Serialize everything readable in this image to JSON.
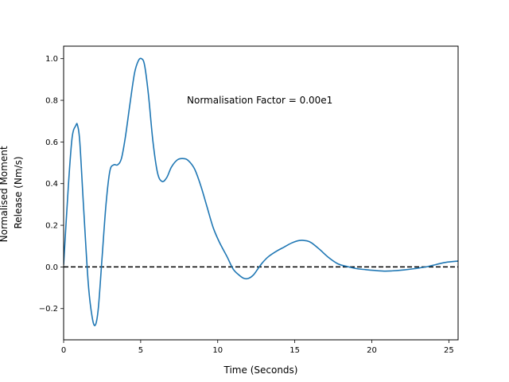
{
  "chart_data": {
    "type": "line",
    "title": "",
    "xlabel": "Time (Seconds)",
    "ylabel_lines": [
      "Normalised Moment",
      "Release (Nm/s)"
    ],
    "xlim": [
      0,
      25.6
    ],
    "ylim": [
      -0.35,
      1.06
    ],
    "x_ticks": [
      0,
      5,
      10,
      15,
      20,
      25
    ],
    "y_ticks": [
      -0.2,
      0.0,
      0.2,
      0.4,
      0.6,
      0.8,
      1.0
    ],
    "x_tick_labels": [
      "0",
      "5",
      "10",
      "15",
      "20",
      "25"
    ],
    "y_tick_labels": [
      "−0.2",
      "0.0",
      "0.2",
      "0.4",
      "0.6",
      "0.8",
      "1.0"
    ],
    "grid": false,
    "annotation": {
      "text": "Normalisation Factor = 0.00e1",
      "x": 8.0,
      "y": 0.8
    },
    "reference_line": {
      "y": 0.0,
      "style": "dashed",
      "color": "#000000"
    },
    "series": [
      {
        "color": "#1f77b4",
        "x": [
          0,
          0.3,
          0.55,
          0.8,
          0.9,
          1.05,
          1.3,
          1.6,
          1.85,
          2.05,
          2.25,
          2.5,
          2.75,
          3.0,
          3.25,
          3.5,
          3.75,
          4.0,
          4.3,
          4.6,
          4.85,
          5.05,
          5.25,
          5.5,
          5.8,
          6.1,
          6.4,
          6.7,
          7.0,
          7.4,
          7.8,
          8.1,
          8.5,
          8.9,
          9.3,
          9.7,
          10.1,
          10.6,
          11.0,
          11.4,
          11.7,
          12.0,
          12.3,
          12.6,
          12.9,
          13.3,
          13.8,
          14.3,
          14.8,
          15.3,
          15.8,
          16.1,
          16.6,
          17.2,
          17.8,
          18.4,
          19.0,
          19.6,
          20.2,
          20.8,
          21.3,
          22.0,
          22.8,
          23.5,
          24.2,
          24.8,
          25.6
        ],
        "y": [
          0.01,
          0.38,
          0.62,
          0.68,
          0.68,
          0.6,
          0.28,
          -0.08,
          -0.24,
          -0.28,
          -0.2,
          0.05,
          0.3,
          0.46,
          0.49,
          0.49,
          0.52,
          0.62,
          0.78,
          0.93,
          0.99,
          1.0,
          0.97,
          0.83,
          0.6,
          0.45,
          0.41,
          0.43,
          0.48,
          0.515,
          0.52,
          0.51,
          0.47,
          0.39,
          0.29,
          0.19,
          0.12,
          0.05,
          -0.01,
          -0.04,
          -0.055,
          -0.055,
          -0.04,
          -0.01,
          0.02,
          0.05,
          0.075,
          0.095,
          0.115,
          0.127,
          0.125,
          0.115,
          0.085,
          0.045,
          0.015,
          0.002,
          -0.008,
          -0.013,
          -0.017,
          -0.02,
          -0.019,
          -0.015,
          -0.008,
          0.0,
          0.012,
          0.022,
          0.028
        ]
      }
    ]
  }
}
